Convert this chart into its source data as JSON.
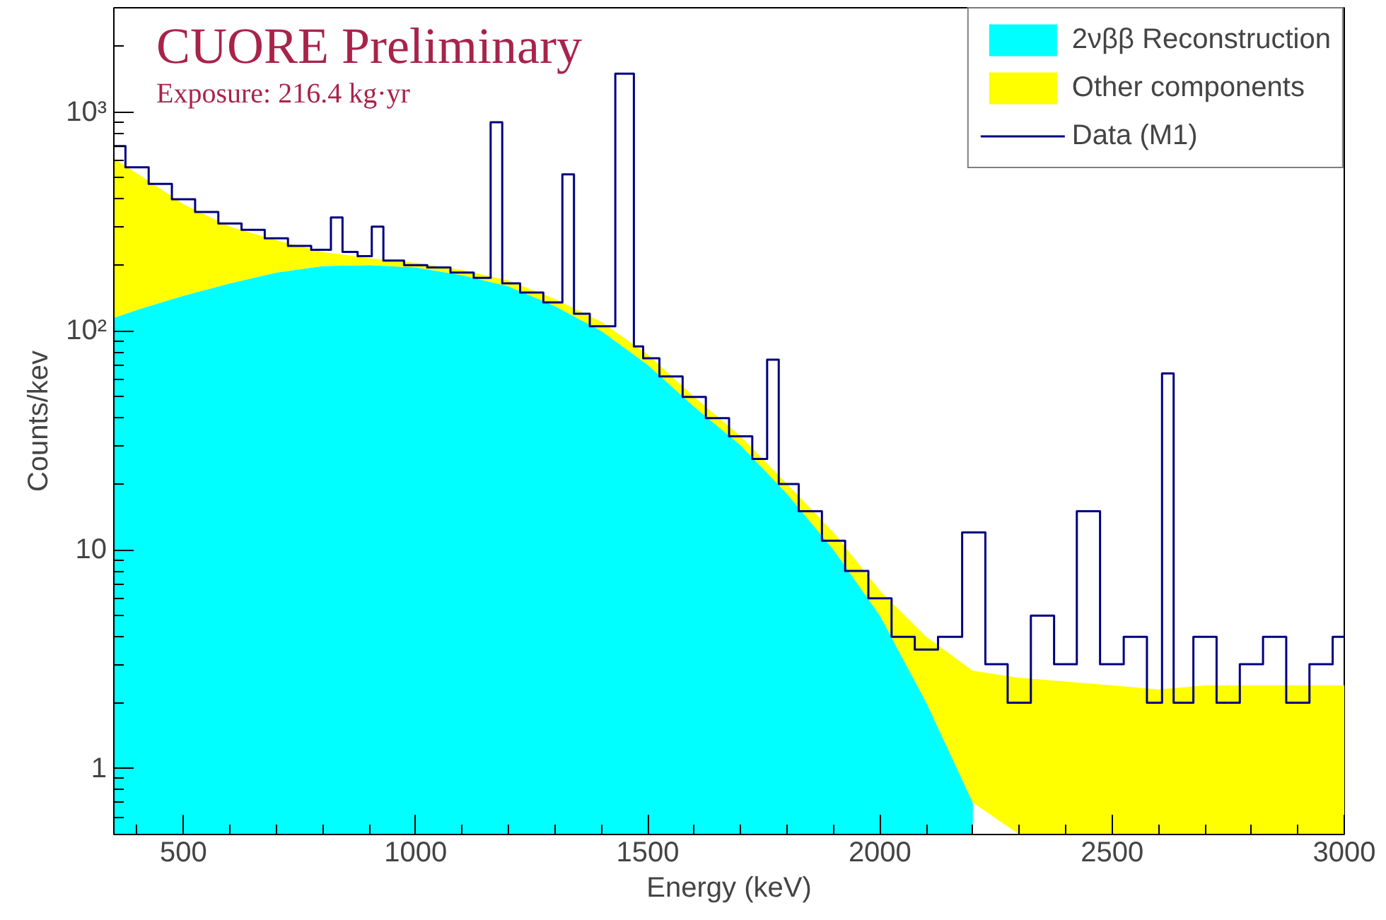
{
  "chart_data": {
    "type": "area",
    "title": "CUORE Preliminary",
    "subtitle": "Exposure: 216.4 kg·yr",
    "xlabel": "Energy (keV)",
    "ylabel": "Counts/kev",
    "log": "y",
    "stacked": true,
    "legend": "top right",
    "grid": false,
    "x": [
      350,
      400,
      500,
      600,
      700,
      800,
      900,
      1000,
      1100,
      1200,
      1300,
      1400,
      1500,
      1600,
      1700,
      1800,
      1900,
      2000,
      2100,
      2200,
      2300,
      2400,
      2500,
      2600,
      2700,
      2800,
      2900,
      3000
    ],
    "xlim": [
      350,
      3000
    ],
    "xticks": [
      500,
      1000,
      1500,
      2000,
      2500,
      3000
    ],
    "ylim": [
      0.5,
      3000
    ],
    "yticks": [
      1,
      10,
      {
        "value": 100,
        "label": "10²"
      },
      {
        "value": 1000,
        "label": "10³"
      }
    ],
    "series": [
      {
        "name": "2νββ Reconstruction",
        "color": "#00ffff",
        "values": [
          115,
          125,
          145,
          165,
          185,
          198,
          200,
          195,
          180,
          160,
          130,
          100,
          70,
          45,
          30,
          18,
          10,
          5,
          2,
          0.7,
          null,
          null,
          null,
          null,
          null,
          null,
          null,
          null
        ]
      },
      {
        "name": "Other components",
        "color": "#ffff00",
        "values": [
          500,
          400,
          235,
          135,
          75,
          32,
          15,
          10,
          10,
          10,
          10,
          10,
          8,
          5,
          3,
          2,
          2,
          1.5,
          2,
          2.1,
          2.6,
          2.5,
          2.4,
          2.3,
          2.4,
          2.4,
          2.4,
          2.4
        ]
      },
      {
        "name": "Data (M1)",
        "type": "step",
        "color": "#000080",
        "x": [
          350,
          400,
          450,
          500,
          550,
          600,
          650,
          700,
          750,
          800,
          835,
          850,
          900,
          911,
          950,
          1000,
          1050,
          1100,
          1150,
          1173,
          1200,
          1250,
          1300,
          1332,
          1350,
          1400,
          1460,
          1480,
          1500,
          1550,
          1600,
          1650,
          1700,
          1750,
          1764,
          1800,
          1850,
          1900,
          1950,
          2000,
          2050,
          2100,
          2150,
          2204,
          2250,
          2300,
          2350,
          2400,
          2448,
          2500,
          2550,
          2600,
          2615,
          2650,
          2700,
          2750,
          2800,
          2850,
          2900,
          2950,
          3000
        ],
        "values": [
          700,
          560,
          470,
          400,
          350,
          310,
          290,
          265,
          245,
          235,
          330,
          230,
          220,
          300,
          210,
          200,
          195,
          185,
          175,
          900,
          165,
          150,
          135,
          520,
          120,
          105,
          1500,
          85,
          75,
          62,
          50,
          40,
          33,
          26,
          74,
          20,
          15,
          11,
          8,
          6,
          4,
          3.5,
          4,
          12,
          3,
          2,
          5,
          3,
          15,
          3,
          4,
          2,
          64,
          2,
          4,
          2,
          3,
          4,
          2,
          3,
          4
        ]
      }
    ]
  }
}
